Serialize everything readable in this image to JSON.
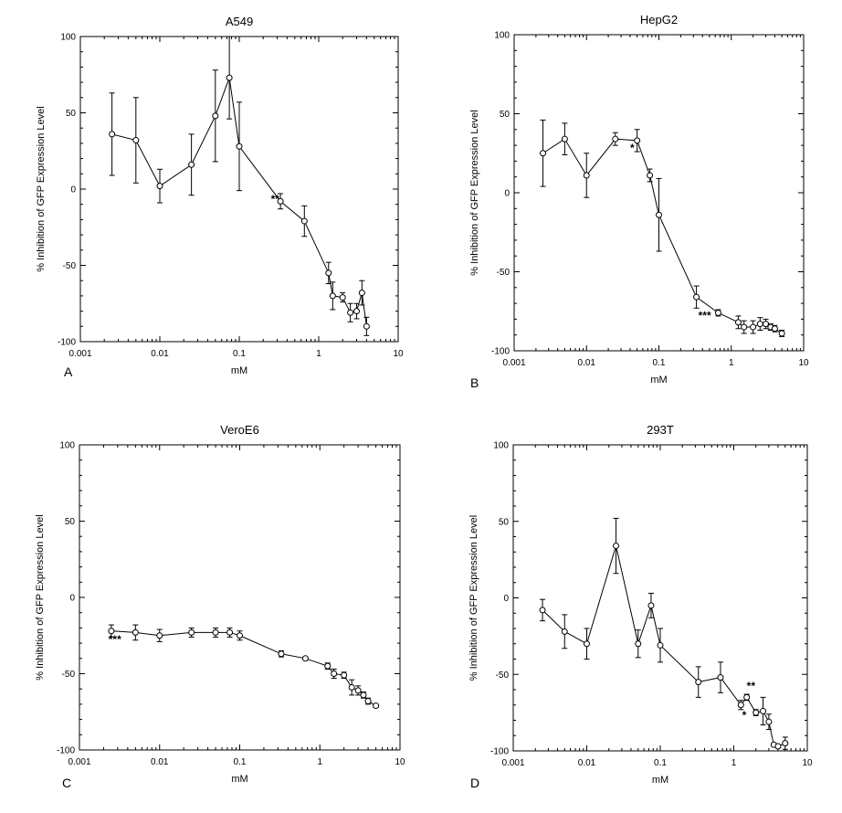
{
  "chart_data": [
    {
      "type": "line",
      "panel_letter": "A",
      "title": "A549",
      "xlabel": "mM",
      "ylabel": "% Inhibition of GFP Expression  Level",
      "xscale": "log",
      "xlim": [
        0.001,
        10
      ],
      "ylim": [
        -100,
        100
      ],
      "x_ticks": [
        "0.001",
        "0.01",
        "0.1",
        "1",
        "10"
      ],
      "y_ticks": [
        "-100",
        "-50",
        "0",
        "50",
        "100"
      ],
      "series": [
        {
          "x": [
            0.0025,
            0.005,
            0.01,
            0.025,
            0.05,
            0.075,
            0.1,
            0.33,
            0.66,
            1.33,
            1.5,
            2.0,
            2.5,
            3.0,
            3.5,
            4.0
          ],
          "y": [
            36,
            32,
            2,
            16,
            48,
            73,
            28,
            -8,
            -21,
            -55,
            -70,
            -71,
            -81,
            -80,
            -68,
            -90
          ],
          "err": [
            27,
            28,
            11,
            20,
            30,
            27,
            29,
            5,
            10,
            7,
            9,
            3,
            6,
            5,
            8,
            6
          ]
        }
      ],
      "annotations": [
        {
          "text": "**",
          "x": 0.25,
          "y": -9
        }
      ]
    },
    {
      "type": "line",
      "panel_letter": "B",
      "title": "HepG2",
      "xlabel": "mM",
      "ylabel": "% Inhibition of GFP Expression  Level",
      "xscale": "log",
      "xlim": [
        0.001,
        10
      ],
      "ylim": [
        -100,
        100
      ],
      "x_ticks": [
        "0.001",
        "0.01",
        "0.1",
        "1",
        "10"
      ],
      "y_ticks": [
        "-100",
        "-50",
        "0",
        "50",
        "100"
      ],
      "series": [
        {
          "x": [
            0.0025,
            0.005,
            0.01,
            0.025,
            0.05,
            0.075,
            0.1,
            0.33,
            0.66,
            1.25,
            1.5,
            2.0,
            2.5,
            3.0,
            3.5,
            4.0,
            5.0
          ],
          "y": [
            25,
            34,
            11,
            34,
            33,
            11,
            -14,
            -66,
            -76,
            -82,
            -85,
            -85,
            -83,
            -83,
            -85,
            -86,
            -89
          ],
          "err": [
            21,
            10,
            14,
            4,
            7,
            4,
            23,
            7,
            2,
            4,
            4,
            4,
            4,
            3,
            2,
            2,
            2
          ]
        }
      ],
      "annotations": [
        {
          "text": "*",
          "x": 0.04,
          "y": 26
        },
        {
          "text": "***",
          "x": 0.35,
          "y": -80
        }
      ]
    },
    {
      "type": "line",
      "panel_letter": "C",
      "title": "VeroE6",
      "xlabel": "mM",
      "ylabel": "% Inhibition of GFP Expression  Level",
      "xscale": "log",
      "xlim": [
        0.001,
        10
      ],
      "ylim": [
        -100,
        100
      ],
      "x_ticks": [
        "0.001",
        "0.01",
        "0.1",
        "1",
        "10"
      ],
      "y_ticks": [
        "-100",
        "-50",
        "0",
        "50",
        "100"
      ],
      "series": [
        {
          "x": [
            0.0025,
            0.005,
            0.01,
            0.025,
            0.05,
            0.075,
            0.1,
            0.33,
            0.66,
            1.25,
            1.5,
            2.0,
            2.5,
            3.0,
            3.5,
            4.0,
            5.0
          ],
          "y": [
            -22,
            -23,
            -25,
            -23,
            -23,
            -23,
            -25,
            -37,
            -40,
            -45,
            -50,
            -51,
            -59,
            -61,
            -64,
            -68,
            -71
          ],
          "err": [
            4,
            5,
            4,
            3,
            3,
            3,
            3,
            2,
            1,
            2,
            3,
            2,
            5,
            3,
            2,
            2,
            1
          ]
        }
      ],
      "annotations": [
        {
          "text": "***",
          "x": 0.0023,
          "y": -30
        }
      ]
    },
    {
      "type": "line",
      "panel_letter": "D",
      "title": "293T",
      "xlabel": "mM",
      "ylabel": "% Inhibition of GFP Expression  Level",
      "xscale": "log",
      "xlim": [
        0.001,
        10
      ],
      "ylim": [
        -100,
        100
      ],
      "x_ticks": [
        "0.001",
        "0.01",
        "0.1",
        "1",
        "10"
      ],
      "y_ticks": [
        "-100",
        "-50",
        "0",
        "50",
        "100"
      ],
      "series": [
        {
          "x": [
            0.0025,
            0.005,
            0.01,
            0.025,
            0.05,
            0.075,
            0.1,
            0.33,
            0.66,
            1.25,
            1.5,
            2.0,
            2.5,
            3.0,
            3.5,
            4.0,
            5.0
          ],
          "y": [
            -8,
            -22,
            -30,
            34,
            -30,
            -5,
            -31,
            -55,
            -52,
            -70,
            -65,
            -75,
            -74,
            -81,
            -96,
            -97,
            -95
          ],
          "err": [
            7,
            11,
            10,
            18,
            9,
            8,
            11,
            10,
            10,
            3,
            2,
            2,
            9,
            5,
            1,
            1,
            4
          ]
        }
      ],
      "annotations": [
        {
          "text": "**",
          "x": 1.5,
          "y": -60
        },
        {
          "text": "*",
          "x": 1.3,
          "y": -79
        }
      ]
    }
  ]
}
